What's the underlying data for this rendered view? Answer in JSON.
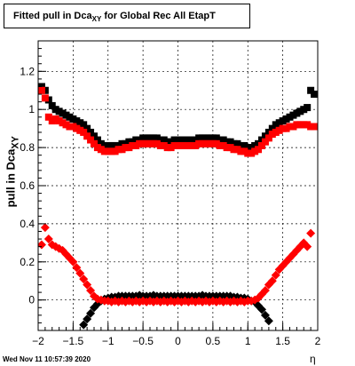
{
  "title": "Fitted pull in Dca",
  "title_sub": "XY",
  "title_rest": " for Global Rec All EtapT",
  "ylabel": "pull in Dca",
  "ylabel_sub": "XY",
  "xlabel": "η",
  "timestamp": "Wed Nov 11 10:57:39 2020",
  "colors": {
    "series_black": "#000000",
    "series_red": "#ff0000",
    "grid": "#000000",
    "frame": "#000000"
  },
  "chart_data": {
    "type": "scatter",
    "xlim": [
      -2,
      2
    ],
    "ylim": [
      -0.16,
      1.36
    ],
    "grid": true,
    "x_ticks": [
      "−2",
      "−1.5",
      "−1",
      "−0.5",
      "0",
      "0.5",
      "1",
      "1.5",
      "2"
    ],
    "y_ticks": [
      "0",
      "0.2",
      "0.4",
      "0.6",
      "0.8",
      "1",
      "1.2"
    ],
    "series": [
      {
        "color": "#000000",
        "marker": "square",
        "points": [
          [
            -1.95,
            1.12
          ],
          [
            -1.9,
            1.1
          ],
          [
            -1.85,
            1.05
          ],
          [
            -1.8,
            1.02
          ],
          [
            -1.75,
            1.0
          ],
          [
            -1.7,
            0.99
          ],
          [
            -1.65,
            0.98
          ],
          [
            -1.6,
            0.97
          ],
          [
            -1.55,
            0.96
          ],
          [
            -1.5,
            0.95
          ],
          [
            -1.45,
            0.94
          ],
          [
            -1.4,
            0.93
          ],
          [
            -1.35,
            0.92
          ],
          [
            -1.3,
            0.9
          ],
          [
            -1.25,
            0.88
          ],
          [
            -1.2,
            0.86
          ],
          [
            -1.15,
            0.84
          ],
          [
            -1.1,
            0.82
          ],
          [
            -1.05,
            0.81
          ],
          [
            -1.0,
            0.81
          ],
          [
            -0.95,
            0.81
          ],
          [
            -0.9,
            0.81
          ],
          [
            -0.85,
            0.81
          ],
          [
            -0.8,
            0.82
          ],
          [
            -0.75,
            0.82
          ],
          [
            -0.7,
            0.83
          ],
          [
            -0.65,
            0.83
          ],
          [
            -0.6,
            0.84
          ],
          [
            -0.55,
            0.84
          ],
          [
            -0.5,
            0.85
          ],
          [
            -0.45,
            0.85
          ],
          [
            -0.4,
            0.85
          ],
          [
            -0.35,
            0.85
          ],
          [
            -0.3,
            0.85
          ],
          [
            -0.25,
            0.84
          ],
          [
            -0.2,
            0.84
          ],
          [
            -0.15,
            0.83
          ],
          [
            -0.1,
            0.83
          ],
          [
            -0.05,
            0.84
          ],
          [
            0.0,
            0.84
          ],
          [
            0.05,
            0.84
          ],
          [
            0.1,
            0.84
          ],
          [
            0.15,
            0.84
          ],
          [
            0.2,
            0.84
          ],
          [
            0.25,
            0.84
          ],
          [
            0.3,
            0.85
          ],
          [
            0.35,
            0.85
          ],
          [
            0.4,
            0.85
          ],
          [
            0.45,
            0.85
          ],
          [
            0.5,
            0.85
          ],
          [
            0.55,
            0.85
          ],
          [
            0.6,
            0.84
          ],
          [
            0.65,
            0.84
          ],
          [
            0.7,
            0.83
          ],
          [
            0.75,
            0.83
          ],
          [
            0.8,
            0.82
          ],
          [
            0.85,
            0.82
          ],
          [
            0.9,
            0.81
          ],
          [
            0.95,
            0.81
          ],
          [
            1.0,
            0.8
          ],
          [
            1.05,
            0.8
          ],
          [
            1.1,
            0.81
          ],
          [
            1.15,
            0.82
          ],
          [
            1.2,
            0.84
          ],
          [
            1.25,
            0.86
          ],
          [
            1.3,
            0.88
          ],
          [
            1.35,
            0.9
          ],
          [
            1.4,
            0.92
          ],
          [
            1.45,
            0.93
          ],
          [
            1.5,
            0.94
          ],
          [
            1.55,
            0.95
          ],
          [
            1.6,
            0.96
          ],
          [
            1.65,
            0.97
          ],
          [
            1.7,
            0.98
          ],
          [
            1.75,
            0.99
          ],
          [
            1.8,
            1.0
          ],
          [
            1.85,
            1.01
          ],
          [
            1.9,
            1.1
          ],
          [
            1.95,
            1.08
          ]
        ]
      },
      {
        "color": "#ff0000",
        "marker": "square",
        "points": [
          [
            -1.95,
            1.1
          ],
          [
            -1.9,
            1.06
          ],
          [
            -1.85,
            0.96
          ],
          [
            -1.8,
            0.94
          ],
          [
            -1.75,
            0.95
          ],
          [
            -1.7,
            0.94
          ],
          [
            -1.65,
            0.93
          ],
          [
            -1.6,
            0.92
          ],
          [
            -1.55,
            0.91
          ],
          [
            -1.5,
            0.91
          ],
          [
            -1.45,
            0.9
          ],
          [
            -1.4,
            0.89
          ],
          [
            -1.35,
            0.88
          ],
          [
            -1.3,
            0.86
          ],
          [
            -1.25,
            0.84
          ],
          [
            -1.2,
            0.82
          ],
          [
            -1.15,
            0.8
          ],
          [
            -1.1,
            0.79
          ],
          [
            -1.05,
            0.78
          ],
          [
            -1.0,
            0.78
          ],
          [
            -0.95,
            0.78
          ],
          [
            -0.9,
            0.78
          ],
          [
            -0.85,
            0.79
          ],
          [
            -0.8,
            0.79
          ],
          [
            -0.75,
            0.8
          ],
          [
            -0.7,
            0.8
          ],
          [
            -0.65,
            0.81
          ],
          [
            -0.6,
            0.81
          ],
          [
            -0.55,
            0.82
          ],
          [
            -0.5,
            0.82
          ],
          [
            -0.45,
            0.82
          ],
          [
            -0.4,
            0.82
          ],
          [
            -0.35,
            0.82
          ],
          [
            -0.3,
            0.82
          ],
          [
            -0.25,
            0.81
          ],
          [
            -0.2,
            0.81
          ],
          [
            -0.15,
            0.8
          ],
          [
            -0.1,
            0.8
          ],
          [
            -0.05,
            0.81
          ],
          [
            0.0,
            0.81
          ],
          [
            0.05,
            0.81
          ],
          [
            0.1,
            0.81
          ],
          [
            0.15,
            0.81
          ],
          [
            0.2,
            0.81
          ],
          [
            0.25,
            0.81
          ],
          [
            0.3,
            0.82
          ],
          [
            0.35,
            0.82
          ],
          [
            0.4,
            0.82
          ],
          [
            0.45,
            0.82
          ],
          [
            0.5,
            0.82
          ],
          [
            0.55,
            0.82
          ],
          [
            0.6,
            0.81
          ],
          [
            0.65,
            0.81
          ],
          [
            0.7,
            0.8
          ],
          [
            0.75,
            0.8
          ],
          [
            0.8,
            0.79
          ],
          [
            0.85,
            0.79
          ],
          [
            0.9,
            0.78
          ],
          [
            0.95,
            0.78
          ],
          [
            1.0,
            0.77
          ],
          [
            1.05,
            0.77
          ],
          [
            1.1,
            0.78
          ],
          [
            1.15,
            0.79
          ],
          [
            1.2,
            0.81
          ],
          [
            1.25,
            0.83
          ],
          [
            1.3,
            0.85
          ],
          [
            1.35,
            0.87
          ],
          [
            1.4,
            0.88
          ],
          [
            1.45,
            0.89
          ],
          [
            1.5,
            0.9
          ],
          [
            1.55,
            0.9
          ],
          [
            1.6,
            0.91
          ],
          [
            1.65,
            0.91
          ],
          [
            1.7,
            0.92
          ],
          [
            1.75,
            0.92
          ],
          [
            1.8,
            0.92
          ],
          [
            1.85,
            0.92
          ],
          [
            1.9,
            0.91
          ],
          [
            1.95,
            0.91
          ]
        ]
      },
      {
        "color": "#000000",
        "marker": "diamond",
        "points": [
          [
            -1.35,
            -0.13
          ],
          [
            -1.3,
            -0.1
          ],
          [
            -1.25,
            -0.07
          ],
          [
            -1.2,
            -0.04
          ],
          [
            -1.15,
            -0.02
          ],
          [
            -1.1,
            -0.005
          ],
          [
            -1.05,
            0.005
          ],
          [
            -1.0,
            0.01
          ],
          [
            -0.95,
            0.015
          ],
          [
            -0.9,
            0.015
          ],
          [
            -0.85,
            0.02
          ],
          [
            -0.8,
            0.02
          ],
          [
            -0.75,
            0.02
          ],
          [
            -0.7,
            0.02
          ],
          [
            -0.65,
            0.02
          ],
          [
            -0.6,
            0.02
          ],
          [
            -0.55,
            0.025
          ],
          [
            -0.5,
            0.02
          ],
          [
            -0.45,
            0.02
          ],
          [
            -0.4,
            0.02
          ],
          [
            -0.35,
            0.025
          ],
          [
            -0.3,
            0.02
          ],
          [
            -0.25,
            0.02
          ],
          [
            -0.2,
            0.02
          ],
          [
            -0.15,
            0.02
          ],
          [
            -0.1,
            0.02
          ],
          [
            -0.05,
            0.02
          ],
          [
            0.0,
            0.02
          ],
          [
            0.05,
            0.02
          ],
          [
            0.1,
            0.02
          ],
          [
            0.15,
            0.02
          ],
          [
            0.2,
            0.02
          ],
          [
            0.25,
            0.02
          ],
          [
            0.3,
            0.02
          ],
          [
            0.35,
            0.025
          ],
          [
            0.4,
            0.02
          ],
          [
            0.45,
            0.02
          ],
          [
            0.5,
            0.02
          ],
          [
            0.55,
            0.02
          ],
          [
            0.6,
            0.02
          ],
          [
            0.65,
            0.02
          ],
          [
            0.7,
            0.02
          ],
          [
            0.75,
            0.02
          ],
          [
            0.8,
            0.015
          ],
          [
            0.85,
            0.015
          ],
          [
            0.9,
            0.01
          ],
          [
            0.95,
            0.01
          ],
          [
            1.0,
            0.005
          ],
          [
            1.05,
            -0.005
          ],
          [
            1.1,
            -0.01
          ],
          [
            1.15,
            -0.03
          ],
          [
            1.2,
            -0.05
          ],
          [
            1.25,
            -0.08
          ],
          [
            1.3,
            -0.11
          ]
        ]
      },
      {
        "color": "#ff0000",
        "marker": "diamond",
        "points": [
          [
            -1.95,
            0.29
          ],
          [
            -1.9,
            0.38
          ],
          [
            -1.85,
            0.32
          ],
          [
            -1.8,
            0.29
          ],
          [
            -1.75,
            0.28
          ],
          [
            -1.7,
            0.27
          ],
          [
            -1.65,
            0.26
          ],
          [
            -1.6,
            0.24
          ],
          [
            -1.55,
            0.22
          ],
          [
            -1.5,
            0.2
          ],
          [
            -1.45,
            0.17
          ],
          [
            -1.4,
            0.14
          ],
          [
            -1.35,
            0.11
          ],
          [
            -1.3,
            0.08
          ],
          [
            -1.25,
            0.05
          ],
          [
            -1.2,
            0.02
          ],
          [
            -1.15,
            0.005
          ],
          [
            -1.1,
            0.0
          ],
          [
            -1.05,
            -0.005
          ],
          [
            -1.0,
            -0.005
          ],
          [
            -0.95,
            -0.01
          ],
          [
            -0.9,
            -0.005
          ],
          [
            -0.85,
            -0.01
          ],
          [
            -0.8,
            -0.005
          ],
          [
            -0.75,
            -0.01
          ],
          [
            -0.7,
            -0.005
          ],
          [
            -0.65,
            -0.01
          ],
          [
            -0.6,
            -0.005
          ],
          [
            -0.55,
            -0.01
          ],
          [
            -0.5,
            -0.005
          ],
          [
            -0.45,
            -0.01
          ],
          [
            -0.4,
            -0.005
          ],
          [
            -0.35,
            -0.01
          ],
          [
            -0.3,
            -0.005
          ],
          [
            -0.25,
            -0.01
          ],
          [
            -0.2,
            -0.005
          ],
          [
            -0.15,
            -0.01
          ],
          [
            -0.1,
            -0.005
          ],
          [
            -0.05,
            -0.01
          ],
          [
            0.0,
            -0.005
          ],
          [
            0.05,
            -0.01
          ],
          [
            0.1,
            -0.005
          ],
          [
            0.15,
            -0.01
          ],
          [
            0.2,
            -0.005
          ],
          [
            0.25,
            -0.01
          ],
          [
            0.3,
            -0.005
          ],
          [
            0.35,
            -0.01
          ],
          [
            0.4,
            -0.005
          ],
          [
            0.45,
            -0.01
          ],
          [
            0.5,
            -0.005
          ],
          [
            0.55,
            -0.01
          ],
          [
            0.6,
            -0.005
          ],
          [
            0.65,
            -0.01
          ],
          [
            0.7,
            -0.005
          ],
          [
            0.75,
            -0.01
          ],
          [
            0.8,
            -0.005
          ],
          [
            0.85,
            -0.01
          ],
          [
            0.9,
            -0.005
          ],
          [
            0.95,
            -0.01
          ],
          [
            1.0,
            -0.005
          ],
          [
            1.05,
            -0.005
          ],
          [
            1.1,
            0.0
          ],
          [
            1.15,
            0.01
          ],
          [
            1.2,
            0.03
          ],
          [
            1.25,
            0.05
          ],
          [
            1.3,
            0.08
          ],
          [
            1.35,
            0.1
          ],
          [
            1.4,
            0.13
          ],
          [
            1.45,
            0.16
          ],
          [
            1.5,
            0.18
          ],
          [
            1.55,
            0.2
          ],
          [
            1.6,
            0.22
          ],
          [
            1.65,
            0.24
          ],
          [
            1.7,
            0.26
          ],
          [
            1.75,
            0.28
          ],
          [
            1.8,
            0.3
          ],
          [
            1.85,
            0.28
          ],
          [
            1.9,
            0.35
          ]
        ]
      }
    ]
  }
}
